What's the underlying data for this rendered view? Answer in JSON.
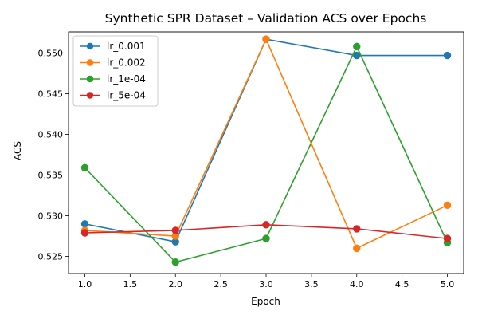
{
  "chart_data": {
    "type": "line",
    "title": "Synthetic SPR Dataset – Validation ACS over Epochs",
    "xlabel": "Epoch",
    "ylabel": "ACS",
    "x": [
      1.0,
      2.0,
      3.0,
      4.0,
      5.0
    ],
    "xlim": [
      0.82,
      5.18
    ],
    "ylim": [
      0.5229,
      0.5526
    ],
    "xticks": [
      1.0,
      1.5,
      2.0,
      2.5,
      3.0,
      3.5,
      4.0,
      4.5,
      5.0
    ],
    "xtick_labels": [
      "1.0",
      "1.5",
      "2.0",
      "2.5",
      "3.0",
      "3.5",
      "4.0",
      "4.5",
      "5.0"
    ],
    "yticks": [
      0.525,
      0.53,
      0.535,
      0.54,
      0.545,
      0.55
    ],
    "ytick_labels": [
      "0.525",
      "0.530",
      "0.535",
      "0.540",
      "0.545",
      "0.550"
    ],
    "grid": false,
    "legend": "upper-left",
    "series": [
      {
        "name": "lr_0.001",
        "color": "#1f77b4",
        "values": [
          0.529,
          0.5268,
          0.5517,
          0.5497,
          0.5497
        ]
      },
      {
        "name": "lr_0.002",
        "color": "#ff7f0e",
        "values": [
          0.5282,
          0.5275,
          0.5517,
          0.526,
          0.5313
        ]
      },
      {
        "name": "lr_1e-04",
        "color": "#2ca02c",
        "values": [
          0.5359,
          0.5243,
          0.5272,
          0.5508,
          0.5267
        ]
      },
      {
        "name": "lr_5e-04",
        "color": "#d62728",
        "values": [
          0.5279,
          0.5282,
          0.5289,
          0.5284,
          0.5272
        ]
      }
    ]
  }
}
